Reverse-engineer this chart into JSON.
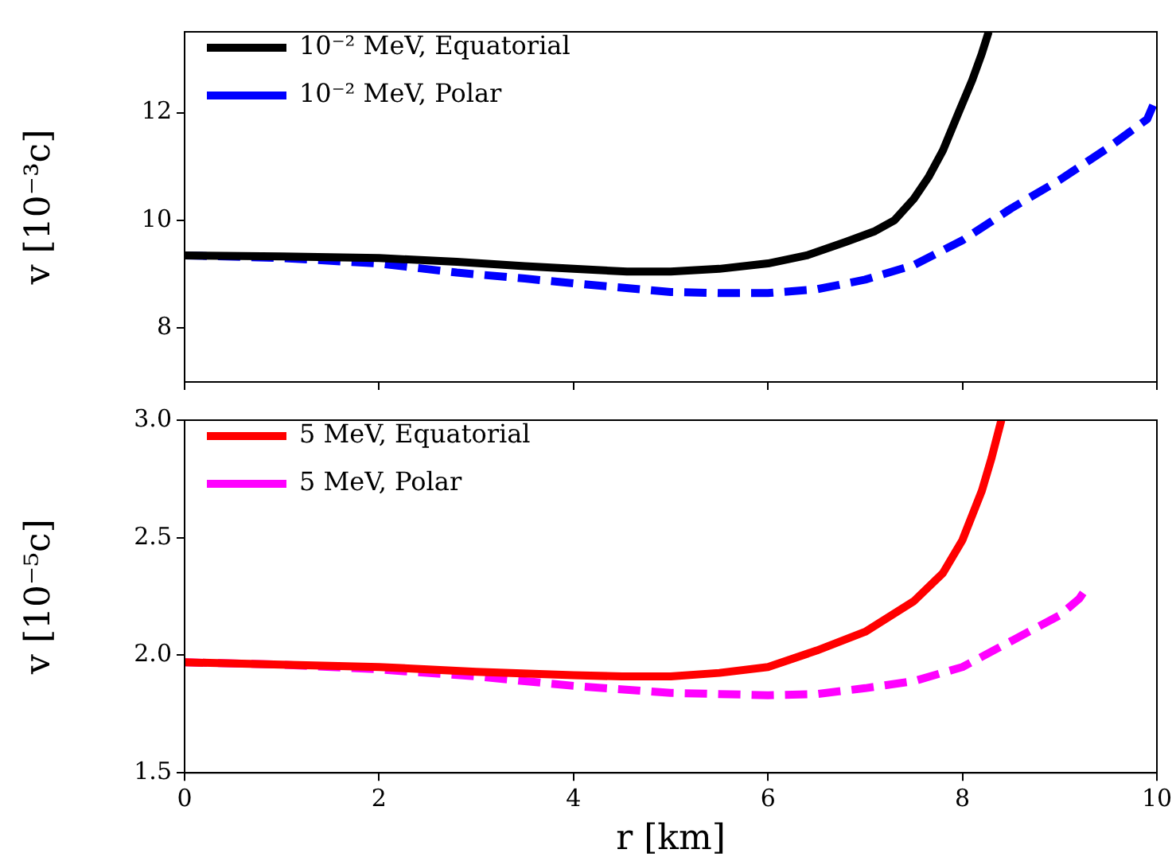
{
  "chart_data": [
    {
      "type": "line",
      "ylabel": "v [10⁻³c]",
      "xlim": [
        0,
        10
      ],
      "xticks": [
        0,
        2,
        4,
        6,
        8,
        10
      ],
      "ylim": [
        7.0,
        13.5
      ],
      "yticks": [
        8,
        10,
        12
      ],
      "tick_labels": "y",
      "grid": false,
      "legend": "top left",
      "marker": "none",
      "series": [
        {
          "name": "10⁻² MeV, Equatorial",
          "color": "#000000",
          "line_style": "solid",
          "x": [
            0,
            1,
            2,
            2.8,
            3.5,
            4,
            4.55,
            5,
            5.5,
            6,
            6.4,
            6.8,
            7.1,
            7.3,
            7.5,
            7.65,
            7.8,
            7.96,
            8.1,
            8.2,
            8.27
          ],
          "values": [
            9.35,
            9.33,
            9.3,
            9.23,
            9.15,
            9.1,
            9.05,
            9.05,
            9.1,
            9.2,
            9.35,
            9.6,
            9.8,
            10.0,
            10.4,
            10.8,
            11.3,
            12.0,
            12.6,
            13.1,
            13.5
          ]
        },
        {
          "name": "10⁻² MeV, Polar",
          "color": "#0000ff",
          "line_style": "dashed",
          "x": [
            0,
            1,
            2,
            2.8,
            3.5,
            4,
            4.5,
            5,
            5.5,
            6,
            6.5,
            7,
            7.5,
            8,
            8.5,
            9,
            9.5,
            9.9,
            10
          ],
          "values": [
            9.35,
            9.3,
            9.2,
            9.03,
            8.92,
            8.83,
            8.75,
            8.67,
            8.65,
            8.65,
            8.72,
            8.9,
            9.17,
            9.63,
            10.22,
            10.75,
            11.35,
            11.88,
            12.3
          ]
        }
      ]
    },
    {
      "type": "line",
      "xlabel": "r [km]",
      "ylabel": "v [10⁻⁵c]",
      "xlim": [
        0,
        10
      ],
      "xticks": [
        0,
        2,
        4,
        6,
        8,
        10
      ],
      "ylim": [
        1.5,
        3.0
      ],
      "yticks": [
        1.5,
        {
          "value": 2,
          "label": "2.0"
        },
        2.5,
        {
          "value": 3,
          "label": "3.0"
        }
      ],
      "grid": false,
      "legend": "top left",
      "marker": "none",
      "series": [
        {
          "name": "5 MeV, Equatorial",
          "color": "#ff0000",
          "line_style": "solid",
          "x": [
            0,
            1,
            2,
            3,
            4,
            4.5,
            5,
            5.5,
            6,
            6.5,
            7,
            7.5,
            7.8,
            8,
            8.2,
            8.3,
            8.4
          ],
          "values": [
            1.97,
            1.96,
            1.95,
            1.93,
            1.915,
            1.91,
            1.91,
            1.925,
            1.95,
            2.02,
            2.1,
            2.23,
            2.35,
            2.49,
            2.7,
            2.84,
            3.0
          ]
        },
        {
          "name": "5 MeV, Polar",
          "color": "#ff00ff",
          "line_style": "dashed",
          "x": [
            0,
            1,
            2,
            3,
            4,
            5,
            6,
            6.5,
            7,
            7.5,
            8,
            8.5,
            9,
            9.2,
            9.3
          ],
          "values": [
            1.97,
            1.96,
            1.94,
            1.91,
            1.87,
            1.84,
            1.83,
            1.835,
            1.86,
            1.89,
            1.95,
            2.06,
            2.17,
            2.24,
            2.3
          ]
        }
      ]
    }
  ]
}
